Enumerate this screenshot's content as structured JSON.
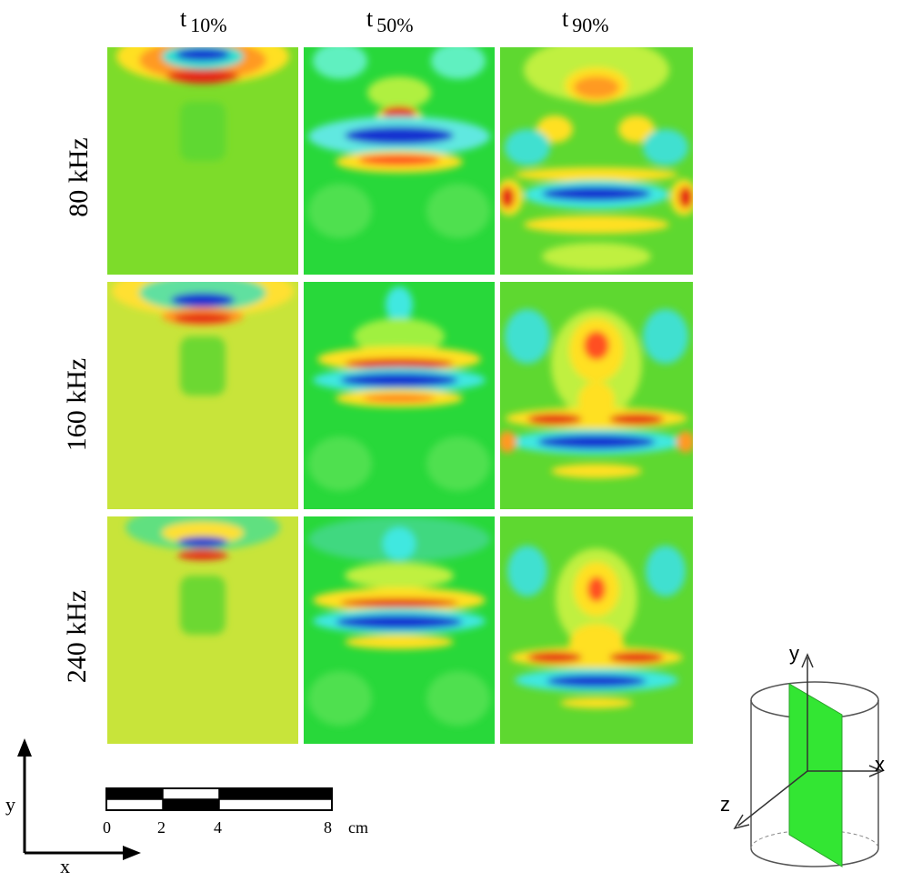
{
  "column_headers": [
    {
      "t": "t",
      "sub": "10%"
    },
    {
      "t": "t",
      "sub": "50%"
    },
    {
      "t": "t",
      "sub": "90%"
    }
  ],
  "row_labels": [
    "80 kHz",
    "160 kHz",
    "240 kHz"
  ],
  "axes_2d": {
    "y": "y",
    "x": "x"
  },
  "scale_bar": {
    "ticks": [
      "0",
      "2",
      "4",
      "8"
    ],
    "unit": "cm"
  },
  "axes_3d": {
    "y": "y",
    "x": "x",
    "z": "z"
  },
  "colors": {
    "background_field": "#22dd22",
    "positive_high": "#e32018",
    "negative_high": "#1030d8",
    "mid_positive": "#ffee20",
    "mid_negative": "#20e0e0"
  }
}
